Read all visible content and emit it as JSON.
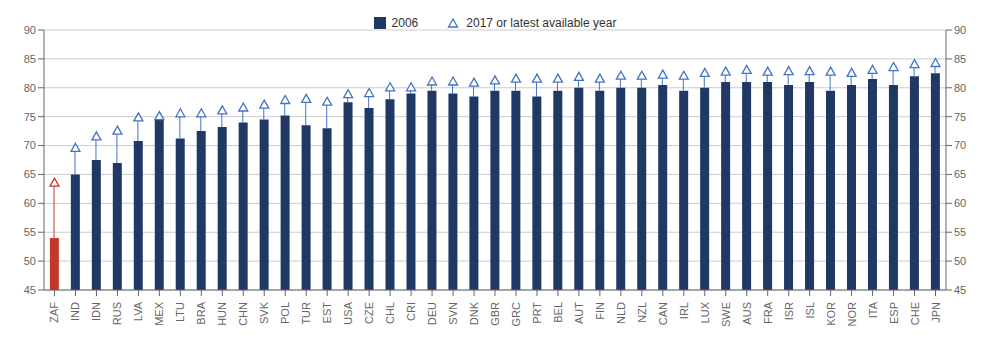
{
  "chart_data": {
    "type": "bar",
    "categories": [
      "ZAF",
      "IND",
      "IDN",
      "RUS",
      "LVA",
      "MEX",
      "LTU",
      "BRA",
      "HUN",
      "CHN",
      "SVK",
      "POL",
      "TUR",
      "EST",
      "USA",
      "CZE",
      "CHL",
      "CRI",
      "DEU",
      "SVN",
      "DNK",
      "GBR",
      "GRC",
      "PRT",
      "BEL",
      "AUT",
      "FIN",
      "NLD",
      "NZL",
      "CAN",
      "IRL",
      "LUX",
      "SWE",
      "AUS",
      "FRA",
      "ISR",
      "ISL",
      "KOR",
      "NOR",
      "ITA",
      "ESP",
      "CHE",
      "JPN"
    ],
    "series": [
      {
        "name": "2006",
        "type": "bar",
        "color": "#1f3864",
        "colors": [
          "#c0392b",
          "#1f3864",
          "#1f3864",
          "#1f3864",
          "#1f3864",
          "#1f3864",
          "#1f3864",
          "#1f3864",
          "#1f3864",
          "#1f3864",
          "#1f3864",
          "#1f3864",
          "#1f3864",
          "#1f3864",
          "#1f3864",
          "#1f3864",
          "#1f3864",
          "#1f3864",
          "#1f3864",
          "#1f3864",
          "#1f3864",
          "#1f3864",
          "#1f3864",
          "#1f3864",
          "#1f3864",
          "#1f3864",
          "#1f3864",
          "#1f3864",
          "#1f3864",
          "#1f3864",
          "#1f3864",
          "#1f3864",
          "#1f3864",
          "#1f3864",
          "#1f3864",
          "#1f3864",
          "#1f3864",
          "#1f3864",
          "#1f3864",
          "#1f3864",
          "#1f3864",
          "#1f3864",
          "#1f3864"
        ],
        "values": [
          54.0,
          65.0,
          67.5,
          67.0,
          70.8,
          74.5,
          71.2,
          72.5,
          73.2,
          74.0,
          74.5,
          75.2,
          73.5,
          73.0,
          77.5,
          76.5,
          78.0,
          79.0,
          79.5,
          79.0,
          78.5,
          79.5,
          79.5,
          78.5,
          79.5,
          80.0,
          79.5,
          80.0,
          80.0,
          80.5,
          79.5,
          80.0,
          81.0,
          81.0,
          81.0,
          80.5,
          81.0,
          79.5,
          80.5,
          81.5,
          80.5,
          82.0,
          82.5
        ]
      },
      {
        "name": "2017 or latest available year",
        "type": "scatter",
        "marker": "triangle",
        "color": "#4472c4",
        "colors": [
          "#c0392b",
          "#4472c4",
          "#4472c4",
          "#4472c4",
          "#4472c4",
          "#4472c4",
          "#4472c4",
          "#4472c4",
          "#4472c4",
          "#4472c4",
          "#4472c4",
          "#4472c4",
          "#4472c4",
          "#4472c4",
          "#4472c4",
          "#4472c4",
          "#4472c4",
          "#4472c4",
          "#4472c4",
          "#4472c4",
          "#4472c4",
          "#4472c4",
          "#4472c4",
          "#4472c4",
          "#4472c4",
          "#4472c4",
          "#4472c4",
          "#4472c4",
          "#4472c4",
          "#4472c4",
          "#4472c4",
          "#4472c4",
          "#4472c4",
          "#4472c4",
          "#4472c4",
          "#4472c4",
          "#4472c4",
          "#4472c4",
          "#4472c4",
          "#4472c4",
          "#4472c4",
          "#4472c4",
          "#4472c4"
        ],
        "values": [
          63.5,
          69.5,
          71.5,
          72.5,
          74.8,
          75.0,
          75.5,
          75.5,
          76.0,
          76.5,
          77.0,
          77.8,
          78.0,
          77.5,
          78.8,
          79.0,
          80.0,
          80.0,
          81.0,
          81.0,
          80.8,
          81.2,
          81.5,
          81.5,
          81.5,
          81.8,
          81.5,
          82.0,
          82.0,
          82.2,
          82.0,
          82.5,
          82.7,
          83.0,
          82.7,
          82.8,
          82.8,
          82.7,
          82.5,
          83.0,
          83.5,
          84.0,
          84.2
        ]
      }
    ],
    "ylim": [
      45,
      90
    ],
    "yticks": [
      45,
      50,
      55,
      60,
      65,
      70,
      75,
      80,
      85,
      90
    ],
    "y2lim": [
      45,
      90
    ],
    "y2ticks": [
      45,
      50,
      55,
      60,
      65,
      70,
      75,
      80,
      85,
      90
    ],
    "grid": true,
    "legend": "top"
  }
}
